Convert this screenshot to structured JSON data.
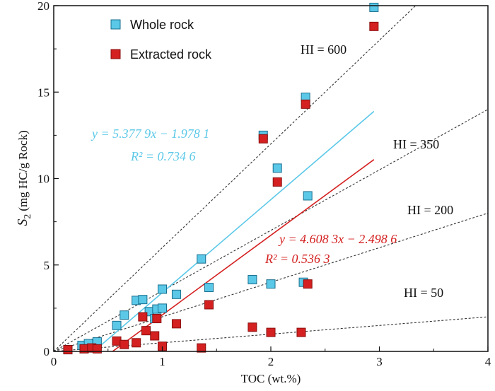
{
  "chart_data": {
    "type": "scatter",
    "xlabel": "TOC (wt.%)",
    "ylabel": "S2 (mg HC/g Rock)",
    "ylabel_main": "S",
    "ylabel_sub": "2",
    "ylabel_rest": "(mg HC/g Rock)",
    "xlim": [
      0,
      4
    ],
    "ylim": [
      0,
      20
    ],
    "xticks": [
      0,
      1,
      2,
      3,
      4
    ],
    "yticks": [
      0,
      5,
      10,
      15,
      20
    ],
    "xtick_labels": [
      "0",
      "1",
      "2",
      "3",
      "4"
    ],
    "ytick_labels": [
      "0",
      "5",
      "10",
      "15",
      "20"
    ],
    "legend": [
      {
        "label": "Whole rock",
        "color": "#5bc8e8"
      },
      {
        "label": "Extracted rock",
        "color": "#d42020"
      }
    ],
    "series": [
      {
        "name": "Whole rock",
        "color": "#5bc8e8",
        "points": [
          [
            0.13,
            0.1
          ],
          [
            0.26,
            0.35
          ],
          [
            0.32,
            0.45
          ],
          [
            0.4,
            0.55
          ],
          [
            0.58,
            1.5
          ],
          [
            0.65,
            2.1
          ],
          [
            0.76,
            2.95
          ],
          [
            0.82,
            3.0
          ],
          [
            0.88,
            2.3
          ],
          [
            0.93,
            1.9
          ],
          [
            0.95,
            2.45
          ],
          [
            1.0,
            3.6
          ],
          [
            1.0,
            2.5
          ],
          [
            1.13,
            3.3
          ],
          [
            1.36,
            5.35
          ],
          [
            1.43,
            3.7
          ],
          [
            1.83,
            4.15
          ],
          [
            1.93,
            12.5
          ],
          [
            2.0,
            3.9
          ],
          [
            2.06,
            10.6
          ],
          [
            2.3,
            4.0
          ],
          [
            2.32,
            14.7
          ],
          [
            2.34,
            9.0
          ],
          [
            2.95,
            19.9
          ]
        ]
      },
      {
        "name": "Extracted rock",
        "color": "#d42020",
        "points": [
          [
            0.13,
            0.1
          ],
          [
            0.28,
            0.15
          ],
          [
            0.35,
            0.2
          ],
          [
            0.4,
            0.15
          ],
          [
            0.58,
            0.6
          ],
          [
            0.65,
            0.4
          ],
          [
            0.76,
            0.5
          ],
          [
            0.82,
            2.0
          ],
          [
            0.85,
            1.2
          ],
          [
            0.93,
            0.9
          ],
          [
            0.95,
            1.9
          ],
          [
            1.0,
            0.3
          ],
          [
            1.13,
            1.6
          ],
          [
            1.36,
            0.2
          ],
          [
            1.43,
            2.7
          ],
          [
            1.83,
            1.4
          ],
          [
            1.93,
            12.3
          ],
          [
            2.0,
            1.1
          ],
          [
            2.06,
            9.8
          ],
          [
            2.28,
            1.1
          ],
          [
            2.32,
            14.3
          ],
          [
            2.34,
            3.9
          ],
          [
            2.95,
            18.8
          ]
        ]
      }
    ],
    "regressions": [
      {
        "name": "Whole rock fit",
        "slope": 5.3779,
        "intercept": -1.9781,
        "x_range": [
          0.37,
          2.95
        ],
        "color": "#5bc8e8",
        "equation": "y = 5.377 9x − 1.978 1",
        "r2": "R² = 0.734 6"
      },
      {
        "name": "Extracted rock fit",
        "slope": 4.6083,
        "intercept": -2.4986,
        "x_range": [
          0.54,
          2.95
        ],
        "color": "#d42020",
        "equation": "y = 4.608 3x − 2.498 6",
        "r2": "R² = 0.536 3"
      }
    ],
    "hi_lines": [
      {
        "label": "HI = 600",
        "slope": 6.0
      },
      {
        "label": "HI = 350",
        "slope": 3.5
      },
      {
        "label": "HI = 200",
        "slope": 2.0
      },
      {
        "label": "HI = 50",
        "slope": 0.5
      }
    ]
  }
}
